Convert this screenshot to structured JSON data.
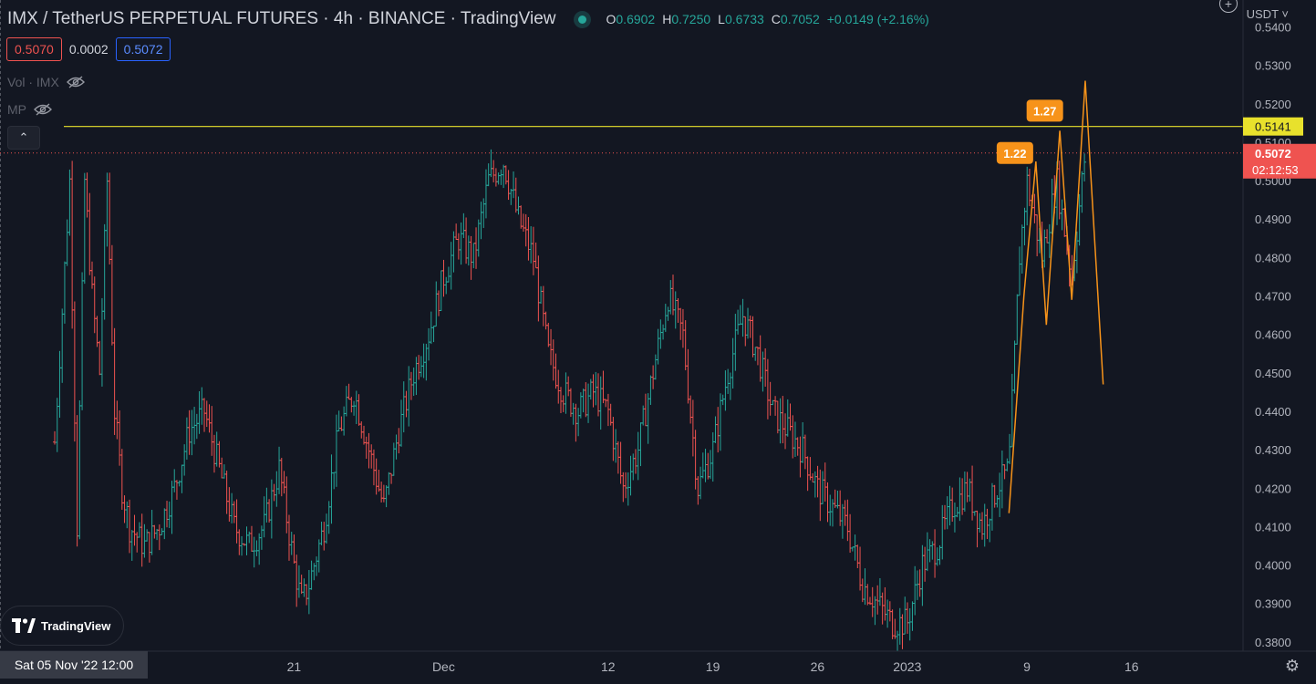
{
  "header": {
    "title": "IMX / TetherUS PERPETUAL FUTURES · 4h · BINANCE · TradingView",
    "ohlc": {
      "o_label": "O",
      "o": "0.6902",
      "h_label": "H",
      "h": "0.7250",
      "l_label": "L",
      "l": "0.6733",
      "c_label": "C",
      "c": "0.7052",
      "change": "+0.0149 (+2.16%)"
    }
  },
  "trade": {
    "sell": "0.5070",
    "spread": "0.0002",
    "buy": "0.5072"
  },
  "indicators": [
    {
      "label": "Vol · IMX"
    },
    {
      "label": "MP"
    }
  ],
  "axis": {
    "unit": "USDT"
  },
  "crosshair_label": "Sat 05 Nov '22   12:00",
  "logo_text": "TradingView",
  "colors": {
    "bg": "#131722",
    "up": "#26a69a",
    "down": "#ef5350",
    "level": "#e8e12c",
    "current": "#ef5350",
    "pattern": "#f7931a"
  },
  "chart_data": {
    "type": "ohlc",
    "y_ticks": [
      0.38,
      0.39,
      0.4,
      0.41,
      0.42,
      0.43,
      0.44,
      0.45,
      0.46,
      0.47,
      0.48,
      0.49,
      0.5,
      0.51,
      0.52,
      0.53,
      0.54
    ],
    "y_tick_labels": [
      "0.3800",
      "0.3900",
      "0.4000",
      "0.4100",
      "0.4200",
      "0.4300",
      "0.4400",
      "0.4500",
      "0.4600",
      "0.4700",
      "0.4800",
      "0.4900",
      "0.5000",
      "0.5100",
      "0.5200",
      "0.5300",
      "0.5400"
    ],
    "ylim": [
      0.3776,
      0.547
    ],
    "x_ticks": [
      {
        "label": "21",
        "day": 16
      },
      {
        "label": "Dec",
        "day": 26
      },
      {
        "label": "12",
        "day": 37
      },
      {
        "label": "19",
        "day": 44
      },
      {
        "label": "26",
        "day": 51
      },
      {
        "label": "2023",
        "day": 57
      },
      {
        "label": "9",
        "day": 65
      },
      {
        "label": "16",
        "day": 72
      }
    ],
    "horizontal_level": {
      "value": 0.5141,
      "label": "0.5141"
    },
    "current_price": {
      "value": 0.5072,
      "label": "0.5072",
      "countdown": "02:12:53"
    },
    "pattern_labels": [
      {
        "text": "1.22",
        "day": 64.2,
        "price": 0.5072
      },
      {
        "text": "1.27",
        "day": 66.2,
        "price": 0.5182
      }
    ],
    "pattern_path": [
      [
        63.8,
        0.4135
      ],
      [
        64.8,
        0.47
      ],
      [
        65.6,
        0.505
      ],
      [
        66.3,
        0.4625
      ],
      [
        67.2,
        0.513
      ],
      [
        68.0,
        0.469
      ],
      [
        68.9,
        0.526
      ],
      [
        70.1,
        0.447
      ]
    ],
    "price_path": [
      [
        0,
        0.432
      ],
      [
        1,
        0.5
      ],
      [
        1.5,
        0.41
      ],
      [
        2,
        0.5
      ],
      [
        2.5,
        0.47
      ],
      [
        3,
        0.45
      ],
      [
        3.5,
        0.5
      ],
      [
        4,
        0.44
      ],
      [
        4.5,
        0.42
      ],
      [
        5,
        0.41
      ],
      [
        6,
        0.405
      ],
      [
        7,
        0.41
      ],
      [
        8,
        0.42
      ],
      [
        9,
        0.435
      ],
      [
        10,
        0.44
      ],
      [
        11,
        0.425
      ],
      [
        12,
        0.41
      ],
      [
        13,
        0.405
      ],
      [
        14,
        0.41
      ],
      [
        15,
        0.425
      ],
      [
        16,
        0.4
      ],
      [
        16.5,
        0.39
      ],
      [
        17,
        0.395
      ],
      [
        18,
        0.41
      ],
      [
        19,
        0.435
      ],
      [
        20,
        0.445
      ],
      [
        21,
        0.43
      ],
      [
        22,
        0.415
      ],
      [
        23,
        0.435
      ],
      [
        24,
        0.45
      ],
      [
        25,
        0.46
      ],
      [
        26,
        0.475
      ],
      [
        27,
        0.485
      ],
      [
        28,
        0.48
      ],
      [
        29,
        0.5
      ],
      [
        30,
        0.505
      ],
      [
        31,
        0.49
      ],
      [
        32,
        0.48
      ],
      [
        33,
        0.455
      ],
      [
        34,
        0.445
      ],
      [
        35,
        0.44
      ],
      [
        36,
        0.445
      ],
      [
        37,
        0.44
      ],
      [
        38,
        0.42
      ],
      [
        39,
        0.43
      ],
      [
        40,
        0.45
      ],
      [
        41,
        0.47
      ],
      [
        42,
        0.46
      ],
      [
        43,
        0.42
      ],
      [
        44,
        0.43
      ],
      [
        45,
        0.45
      ],
      [
        46,
        0.465
      ],
      [
        47,
        0.455
      ],
      [
        48,
        0.44
      ],
      [
        49,
        0.435
      ],
      [
        50,
        0.43
      ],
      [
        51,
        0.42
      ],
      [
        52,
        0.415
      ],
      [
        53,
        0.41
      ],
      [
        54,
        0.395
      ],
      [
        55,
        0.39
      ],
      [
        56,
        0.385
      ],
      [
        57,
        0.385
      ],
      [
        58,
        0.4
      ],
      [
        59,
        0.405
      ],
      [
        60,
        0.415
      ],
      [
        61,
        0.42
      ],
      [
        62,
        0.41
      ],
      [
        63,
        0.42
      ],
      [
        63.8,
        0.425
      ],
      [
        64.5,
        0.48
      ],
      [
        65,
        0.5
      ],
      [
        66,
        0.48
      ],
      [
        67,
        0.5
      ],
      [
        68,
        0.475
      ],
      [
        68.9,
        0.5072
      ]
    ]
  }
}
